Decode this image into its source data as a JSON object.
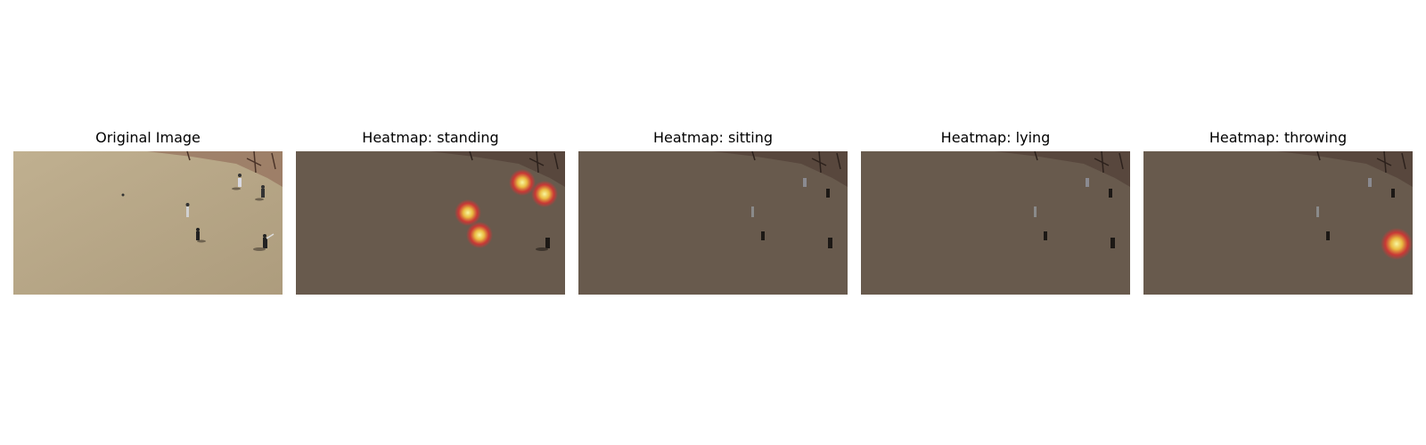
{
  "panels": [
    {
      "id": "original",
      "title": "Original Image",
      "heat_spots": []
    },
    {
      "id": "standing",
      "title": "Heatmap: standing",
      "heat_spots": [
        "person-center-left",
        "person-lower-center",
        "person-top-right-a",
        "person-top-right-b"
      ]
    },
    {
      "id": "sitting",
      "title": "Heatmap: sitting",
      "heat_spots": []
    },
    {
      "id": "lying",
      "title": "Heatmap: lying",
      "heat_spots": []
    },
    {
      "id": "throwing",
      "title": "Heatmap: throwing",
      "heat_spots": [
        "person-right-throwing"
      ]
    }
  ],
  "colors": {
    "field": "#b5a585",
    "field_dimmed": "#685a4d",
    "trees": "#7a5040",
    "heat_core": "#f4f07a",
    "heat_outer": "#e03030"
  }
}
